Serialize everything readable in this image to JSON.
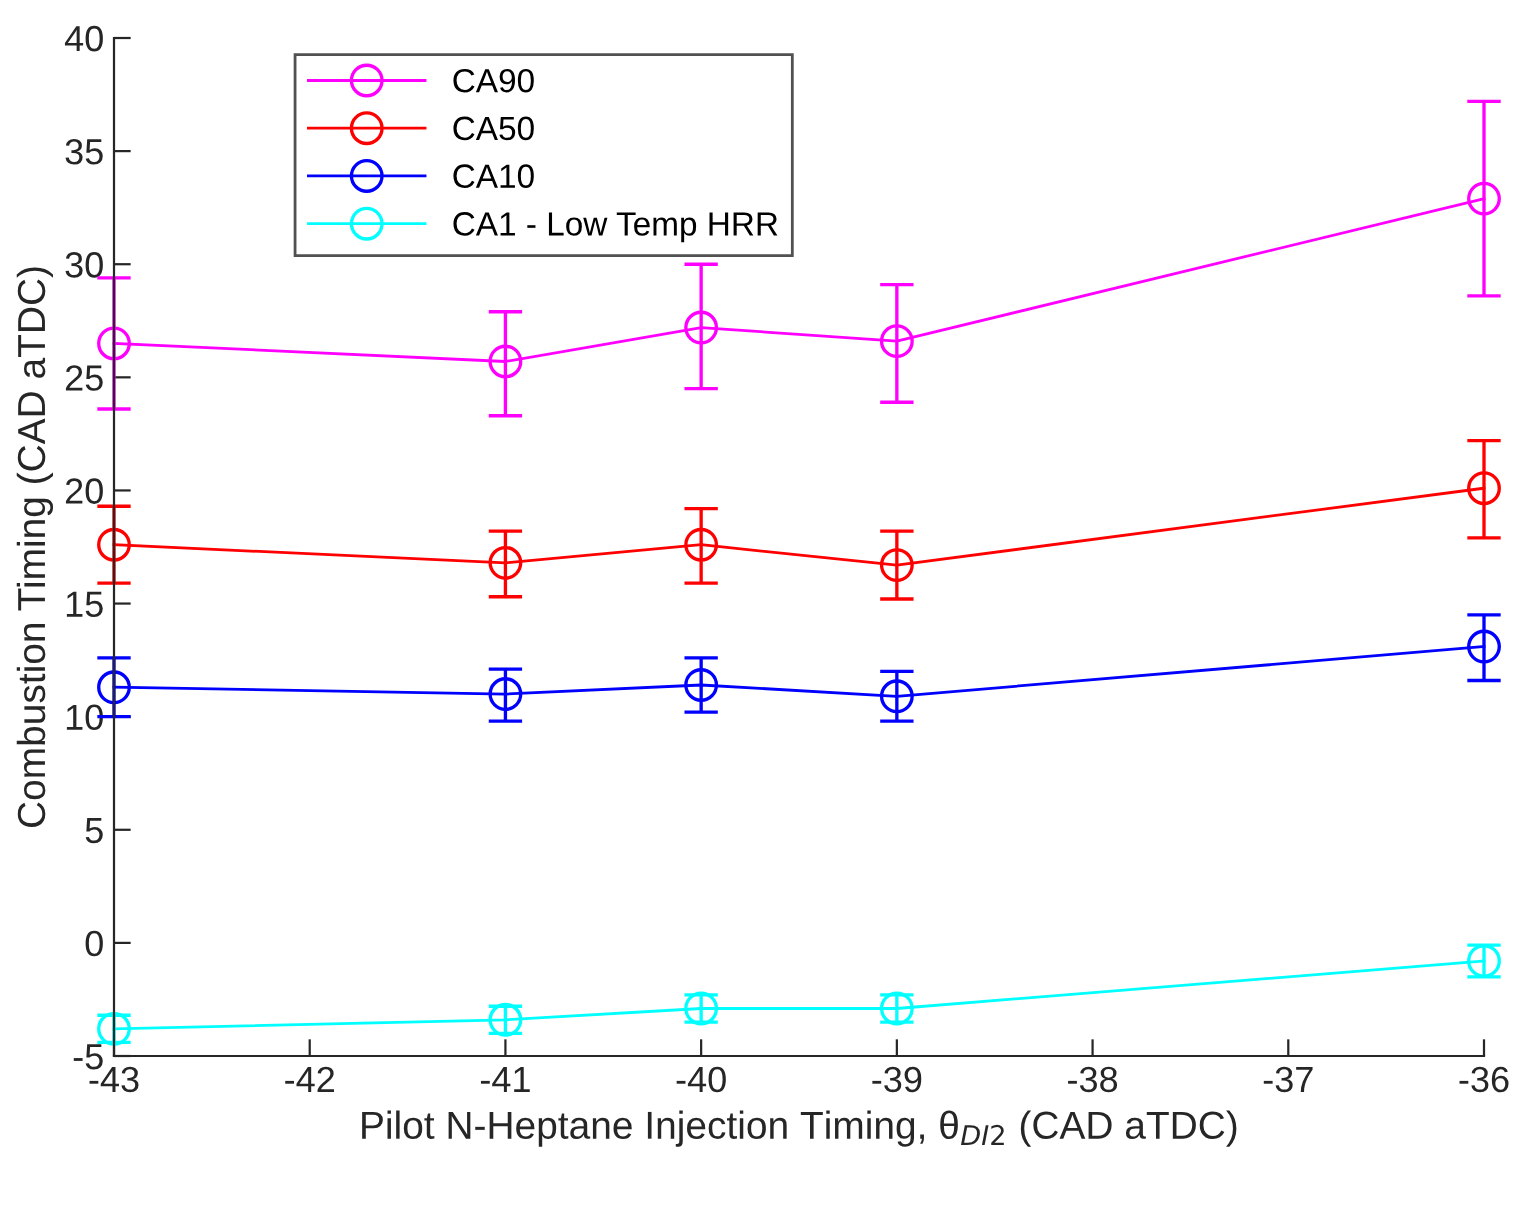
{
  "chart_data": {
    "type": "line",
    "xlabel": "Pilot N-Heptane Injection Timing, θ$_{DI2}$ (CAD aTDC)",
    "ylabel": "Combustion Timing (CAD aTDC)",
    "x": [
      -43,
      -41,
      -40,
      -39,
      -36
    ],
    "series": [
      {
        "name": "CA90",
        "color": "#ff00ff",
        "values": [
          26.5,
          25.7,
          27.2,
          26.6,
          32.9
        ],
        "errors": [
          [
            23.6,
            29.4
          ],
          [
            23.3,
            27.9
          ],
          [
            24.5,
            30.0
          ],
          [
            23.9,
            29.1
          ],
          [
            28.6,
            37.2
          ]
        ]
      },
      {
        "name": "CA50",
        "color": "#ff0000",
        "values": [
          17.6,
          16.8,
          17.6,
          16.7,
          20.1
        ],
        "errors": [
          [
            15.9,
            19.3
          ],
          [
            15.3,
            18.2
          ],
          [
            15.9,
            19.2
          ],
          [
            15.2,
            18.2
          ],
          [
            17.9,
            22.2
          ]
        ]
      },
      {
        "name": "CA10",
        "color": "#0000ff",
        "values": [
          11.3,
          11.0,
          11.4,
          10.9,
          13.1
        ],
        "errors": [
          [
            10.0,
            12.6
          ],
          [
            9.8,
            12.1
          ],
          [
            10.2,
            12.6
          ],
          [
            9.8,
            12.0
          ],
          [
            11.6,
            14.5
          ]
        ]
      },
      {
        "name": "CA1 - Low Temp HRR",
        "color": "#00ffff",
        "values": [
          -3.8,
          -3.4,
          -2.9,
          -2.9,
          -0.8
        ],
        "errors": [
          [
            -4.4,
            -3.2
          ],
          [
            -4.0,
            -2.8
          ],
          [
            -3.5,
            -2.3
          ],
          [
            -3.5,
            -2.3
          ],
          [
            -1.5,
            -0.1
          ]
        ]
      }
    ],
    "xlim": [
      -43,
      -36
    ],
    "xticks": [
      -43,
      -42,
      -41,
      -40,
      -39,
      -38,
      -37,
      -36
    ],
    "ylim": [
      -5,
      40
    ],
    "yticks": [
      -5,
      0,
      5,
      10,
      15,
      20,
      25,
      30,
      35,
      40
    ],
    "grid": false,
    "legend": "top left",
    "marker": "circle",
    "line_style": "solid"
  }
}
